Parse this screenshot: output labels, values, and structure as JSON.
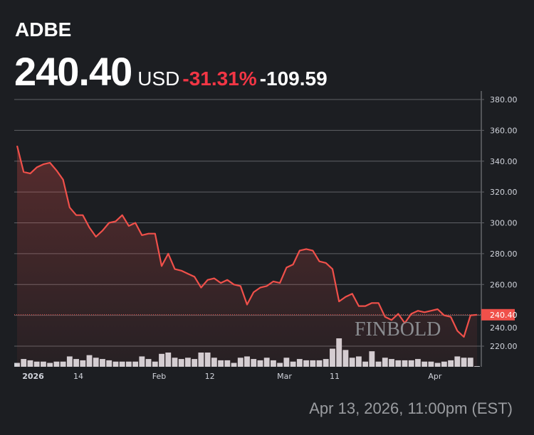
{
  "header": {
    "ticker": "ADBE",
    "price": "240.40",
    "currency": "USD",
    "change_pct": "-31.31%",
    "change_abs": "-109.59"
  },
  "timestamp": "Apr 13, 2026, 11:00pm (EST)",
  "watermark": "FINBOLD",
  "colors": {
    "line": "#f0504a",
    "bg": "#1c1e22",
    "volume": "#d3d5da",
    "label_bg": "#f0504a"
  },
  "chart_data": {
    "type": "line",
    "title": "ADBE",
    "ylim": [
      212,
      385
    ],
    "y_ticks": [
      "380.00",
      "360.00",
      "340.00",
      "320.00",
      "300.00",
      "280.00",
      "260.00",
      "240.00",
      "220.00"
    ],
    "y_tick_values": [
      380,
      360,
      340,
      320,
      300,
      280,
      260,
      240,
      220
    ],
    "x_ticks": [
      {
        "label": "2026",
        "index": 1
      },
      {
        "label": "14",
        "index": 9
      },
      {
        "label": "Feb",
        "index": 21
      },
      {
        "label": "12",
        "index": 29
      },
      {
        "label": "Mar",
        "index": 40
      },
      {
        "label": "11",
        "index": 48
      },
      {
        "label": "Apr",
        "index": 63
      }
    ],
    "last_price_label": "240.40",
    "last_price": 240.4,
    "values": [
      350,
      333,
      332,
      336,
      338,
      339,
      334,
      328,
      310,
      305,
      305,
      297,
      291,
      295,
      300,
      301,
      305,
      298,
      300,
      292,
      293,
      293,
      272,
      280,
      270,
      269,
      267,
      265,
      258,
      263,
      264,
      261,
      263,
      260,
      259,
      247,
      255,
      258,
      259,
      262,
      261,
      271,
      273,
      282,
      283,
      282,
      275,
      274,
      270,
      249,
      252,
      254,
      246,
      246,
      248,
      248,
      239,
      237,
      241,
      235,
      241,
      243,
      242,
      243,
      244,
      240,
      239,
      230,
      226,
      240,
      240.4
    ],
    "volume": [
      3,
      6,
      5,
      4,
      4,
      3,
      4,
      4,
      8,
      6,
      5,
      9,
      7,
      6,
      5,
      4,
      4,
      4,
      4,
      8,
      6,
      4,
      10,
      11,
      7,
      6,
      7,
      6,
      11,
      11,
      7,
      5,
      5,
      3,
      7,
      8,
      6,
      5,
      7,
      5,
      3,
      7,
      4,
      6,
      5,
      5,
      5,
      6,
      14,
      22,
      13,
      7,
      8,
      4,
      12,
      4,
      7,
      6,
      5,
      5,
      5,
      6,
      4,
      4,
      3,
      4,
      5,
      8,
      7,
      7,
      0.5
    ]
  }
}
